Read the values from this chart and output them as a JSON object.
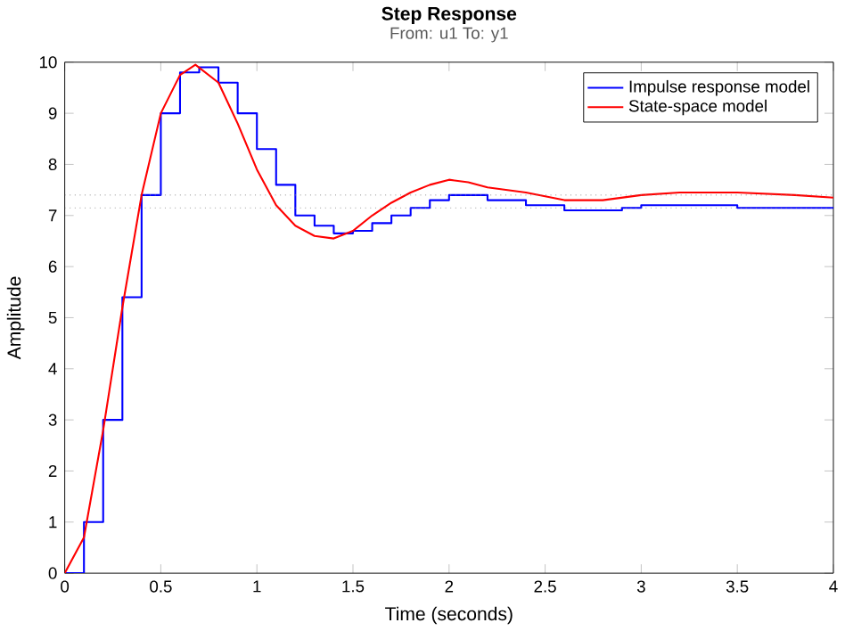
{
  "chart_data": {
    "type": "line",
    "title": "Step Response",
    "subtitle": "From: u1  To: y1",
    "xlabel": "Time (seconds)",
    "ylabel": "Amplitude",
    "series": [
      {
        "name": "Impulse response model",
        "color": "#0000ff",
        "type": "step",
        "x": [
          0,
          0.1,
          0.2,
          0.3,
          0.4,
          0.5,
          0.6,
          0.7,
          0.8,
          0.9,
          1.0,
          1.1,
          1.2,
          1.3,
          1.4,
          1.5,
          1.6,
          1.7,
          1.8,
          1.9,
          2.0,
          2.2,
          2.4,
          2.6,
          2.9,
          3.0,
          3.5,
          4.0
        ],
        "values": [
          0,
          1.0,
          3.0,
          5.4,
          7.4,
          9.0,
          9.8,
          9.9,
          9.6,
          9.0,
          8.3,
          7.6,
          7.0,
          6.8,
          6.65,
          6.7,
          6.85,
          7.0,
          7.15,
          7.3,
          7.4,
          7.3,
          7.2,
          7.1,
          7.15,
          7.2,
          7.15,
          7.15
        ]
      },
      {
        "name": "State-space model",
        "color": "#ff0000",
        "x": [
          0,
          0.1,
          0.2,
          0.3,
          0.4,
          0.5,
          0.6,
          0.68,
          0.8,
          0.9,
          1.0,
          1.1,
          1.2,
          1.3,
          1.4,
          1.5,
          1.6,
          1.7,
          1.8,
          1.9,
          2.0,
          2.1,
          2.2,
          2.4,
          2.6,
          2.8,
          3.0,
          3.2,
          3.5,
          3.8,
          4.0
        ],
        "values": [
          0,
          0.7,
          2.8,
          5.2,
          7.4,
          9.0,
          9.75,
          9.95,
          9.6,
          8.8,
          7.9,
          7.2,
          6.8,
          6.6,
          6.55,
          6.7,
          7.0,
          7.25,
          7.45,
          7.6,
          7.7,
          7.65,
          7.55,
          7.45,
          7.3,
          7.3,
          7.4,
          7.45,
          7.45,
          7.4,
          7.35
        ]
      }
    ],
    "ref_lines": [
      {
        "axis": "y",
        "value": 7.4,
        "color": "#808080",
        "line_style": "dotted"
      },
      {
        "axis": "y",
        "value": 7.15,
        "color": "#808080",
        "line_style": "dotted"
      }
    ],
    "xlim": [
      0,
      4
    ],
    "ylim": [
      0,
      10
    ],
    "xticks": [
      0,
      0.5,
      1,
      1.5,
      2,
      2.5,
      3,
      3.5,
      4
    ],
    "yticks": [
      0,
      1,
      2,
      3,
      4,
      5,
      6,
      7,
      8,
      9,
      10
    ],
    "grid": false,
    "legend": "top right",
    "marker": "none"
  }
}
